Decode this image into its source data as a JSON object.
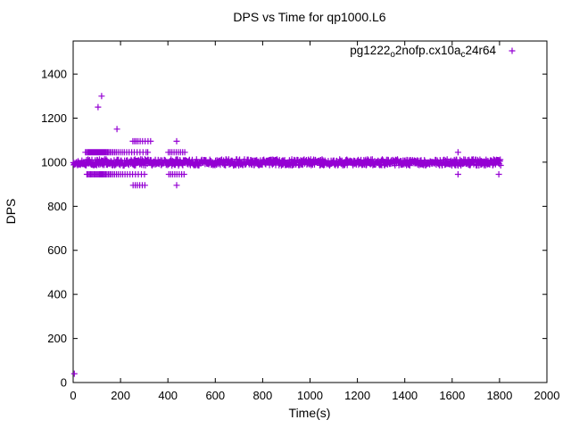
{
  "chart_data": {
    "type": "scatter",
    "title": "DPS vs Time for qp1000.L6",
    "xlabel": "Time(s)",
    "ylabel": "DPS",
    "xlim": [
      0,
      2000
    ],
    "ylim": [
      0,
      1550
    ],
    "x_ticks": [
      0,
      200,
      400,
      600,
      800,
      1000,
      1200,
      1400,
      1600,
      1800,
      2000
    ],
    "y_ticks": [
      0,
      200,
      400,
      600,
      800,
      1000,
      1200,
      1400
    ],
    "grid": false,
    "tick_style": "inward-mirrored",
    "background_color": "#ffffff",
    "axis_color": "#000000",
    "legend_position": "top-right-inside",
    "series": [
      {
        "name": "pg1222_o2nofp.cx10a_c24r64",
        "label_parts": [
          {
            "t": "pg1222"
          },
          {
            "sub": "o"
          },
          {
            "t": "2nofp.cx10a"
          },
          {
            "sub": "c"
          },
          {
            "t": "24r64"
          }
        ],
        "marker": "plus",
        "color": "#9400d3",
        "band": {
          "comment": "dense steady-state band of samples",
          "t_start": 1,
          "t_end": 1806,
          "t_step": 2,
          "dps_min": 985,
          "dps_max": 1013
        },
        "rows": [
          {
            "dps": 1045,
            "t_values": [
              52,
              57,
              62,
              66,
              70,
              74,
              78,
              82,
              86,
              90,
              94,
              98,
              102,
              106,
              110,
              113,
              116,
              119,
              122,
              125,
              128,
              132,
              136,
              140,
              145,
              150,
              156,
              162,
              168,
              175,
              182,
              190,
              198,
              207,
              216,
              226,
              236,
              247,
              258,
              270,
              282,
              295,
              308,
              315,
              402,
              409,
              417,
              426,
              435,
              444,
              453,
              462,
              471,
              1625
            ]
          },
          {
            "dps": 945,
            "t_values": [
              58,
              63,
              68,
              73,
              78,
              83,
              88,
              93,
              98,
              103,
              108,
              112,
              116,
              120,
              124,
              128,
              133,
              138,
              143,
              149,
              155,
              161,
              168,
              175,
              183,
              191,
              200,
              209,
              219,
              229,
              240,
              251,
              263,
              275,
              288,
              301,
              404,
              412,
              420,
              429,
              438,
              448,
              458,
              468,
              1625,
              1797
            ]
          },
          {
            "dps": 1095,
            "t_values": [
              252,
              259,
              266,
              274,
              283,
              293,
              304,
              316,
              327,
              437
            ]
          },
          {
            "dps": 895,
            "t_values": [
              253,
              262,
              271,
              281,
              292,
              303,
              437
            ]
          }
        ],
        "outliers": [
          [
            5,
            40
          ],
          [
            105,
            1250
          ],
          [
            120,
            1300
          ],
          [
            185,
            1150
          ]
        ]
      }
    ]
  }
}
